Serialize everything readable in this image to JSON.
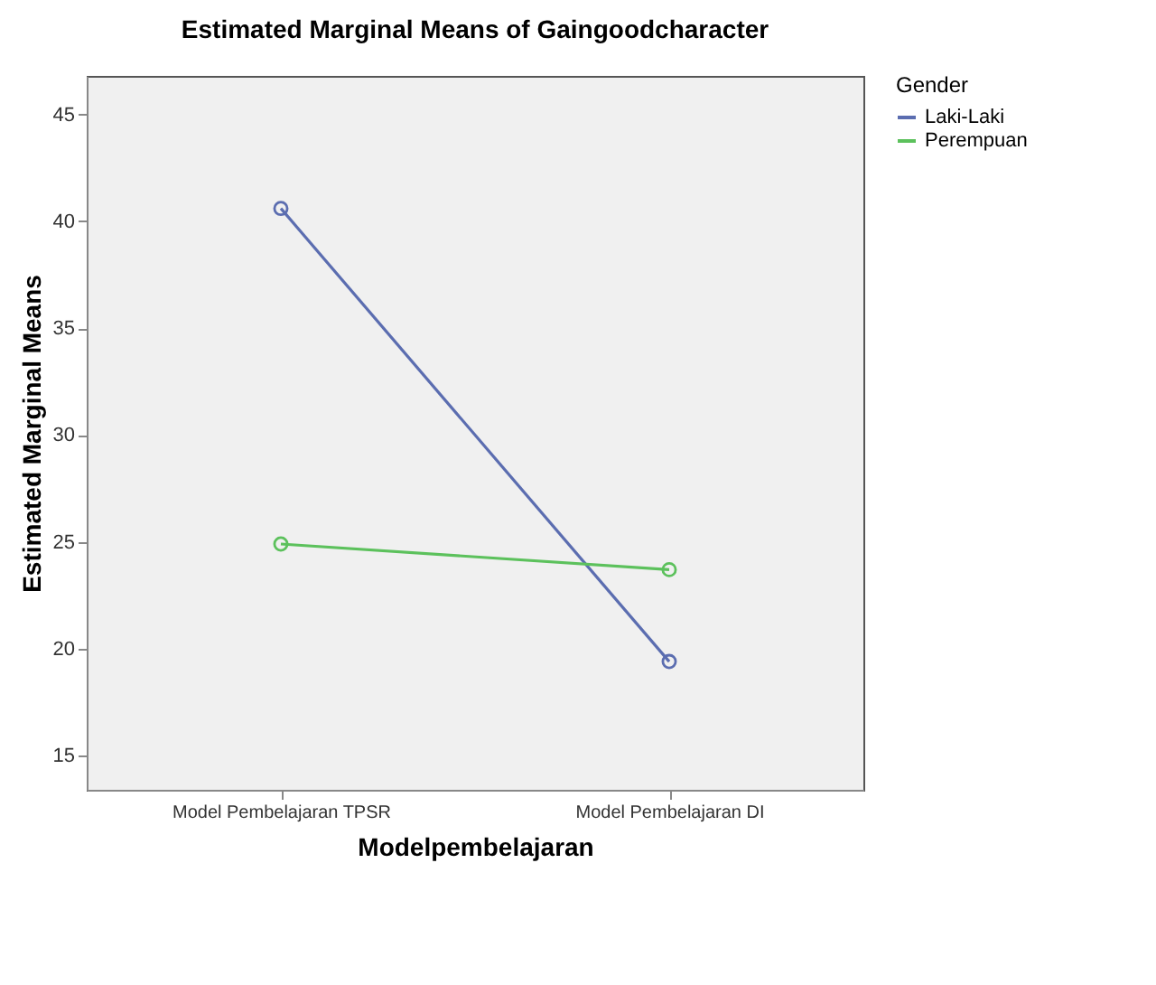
{
  "chart_data": {
    "type": "line",
    "title": "Estimated Marginal Means of Gaingoodcharacter",
    "xlabel": "Modelpembelajaran",
    "ylabel": "Estimated Marginal Means",
    "legend_title": "Gender",
    "categories": [
      "Model Pembelajaran TPSR",
      "Model Pembelajaran DI"
    ],
    "series": [
      {
        "name": "Laki-Laki",
        "color": "#5b6db0",
        "values": [
          40.6,
          19.4
        ]
      },
      {
        "name": "Perempuan",
        "color": "#5cc15c",
        "values": [
          24.9,
          23.7
        ]
      }
    ],
    "ylim": [
      13.4,
      46.8
    ],
    "yticks": [
      15,
      20,
      25,
      30,
      35,
      40,
      45
    ],
    "grid": false,
    "legend": "top right",
    "marker": "circle",
    "line_style": "solid"
  }
}
